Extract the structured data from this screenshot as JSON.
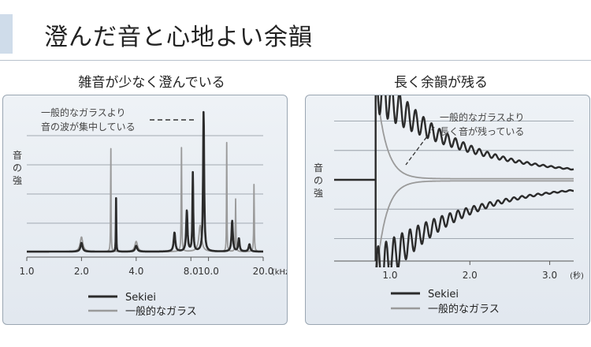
{
  "page": {
    "title": "澄んだ音と心地よい余韻"
  },
  "left_panel": {
    "heading": "雑音が少なく澄んでいる",
    "annotation": [
      "一般的なガラスより",
      "音の波が集中している"
    ]
  },
  "right_panel": {
    "heading": "長く余韻が残る",
    "annotation": [
      "一般的なガラスより",
      "長く音が残っている"
    ]
  },
  "colors": {
    "sekiei": "#2b2b2b",
    "glass": "#9a9a9a",
    "panel_bg": "#e6ebf1",
    "accent": "#cfdcea"
  },
  "chart_data": [
    {
      "type": "line",
      "title": "雑音が少なく澄んでいる",
      "xlabel": "",
      "xunit": "(kHz)",
      "ylabel": "音の強さ",
      "xscale": "log",
      "xticks": [
        "1.0",
        "2.0",
        "4.0",
        "8.0",
        "10.0",
        "20.0"
      ],
      "xtick_values": [
        1.0,
        2.0,
        4.0,
        8.0,
        10.0,
        20.0
      ],
      "xlim": [
        1.0,
        20.0
      ],
      "ylim": [
        0,
        1
      ],
      "grid": true,
      "legend_position": "bottom",
      "series": [
        {
          "name": "Sekiei",
          "color": "#2b2b2b",
          "peaks": [
            {
              "x": 2.0,
              "h": 0.06,
              "w": 0.015
            },
            {
              "x": 3.1,
              "h": 0.37,
              "w": 0.003
            },
            {
              "x": 4.0,
              "h": 0.04,
              "w": 0.015
            },
            {
              "x": 6.5,
              "h": 0.13,
              "w": 0.012
            },
            {
              "x": 7.6,
              "h": 0.28,
              "w": 0.01
            },
            {
              "x": 8.2,
              "h": 0.54,
              "w": 0.006
            },
            {
              "x": 9.4,
              "h": 0.96,
              "w": 0.008
            },
            {
              "x": 13.5,
              "h": 0.21,
              "w": 0.01
            },
            {
              "x": 14.7,
              "h": 0.09,
              "w": 0.01
            },
            {
              "x": 16.8,
              "h": 0.05,
              "w": 0.012
            }
          ],
          "baseline": 0.005
        },
        {
          "name": "一般的なガラス",
          "color": "#9a9a9a",
          "peaks": [
            {
              "x": 2.0,
              "h": 0.1,
              "w": 0.02
            },
            {
              "x": 2.9,
              "h": 0.72,
              "w": 0.003
            },
            {
              "x": 4.0,
              "h": 0.07,
              "w": 0.02
            },
            {
              "x": 7.1,
              "h": 0.72,
              "w": 0.004
            },
            {
              "x": 9.0,
              "h": 0.18,
              "w": 0.02
            },
            {
              "x": 12.6,
              "h": 0.78,
              "w": 0.003
            },
            {
              "x": 14.1,
              "h": 0.36,
              "w": 0.004
            },
            {
              "x": 17.8,
              "h": 0.46,
              "w": 0.004
            }
          ],
          "baseline": 0.005
        }
      ]
    },
    {
      "type": "line",
      "title": "長く余韻が残る",
      "xlabel": "",
      "xunit": "(秒)",
      "ylabel": "音の強さ",
      "xticks": [
        "1.0",
        "2.0",
        "3.0"
      ],
      "xtick_values": [
        1.0,
        2.0,
        3.0
      ],
      "xlim": [
        0.3,
        3.3
      ],
      "ylim": [
        -1,
        1
      ],
      "grid": true,
      "legend_position": "bottom",
      "series": [
        {
          "name": "Sekiei",
          "color": "#2b2b2b",
          "onset": 0.82,
          "amplitude": 1.6,
          "decay": 1.0,
          "floor": 0.05,
          "frequency": 10
        },
        {
          "name": "一般的なガラス",
          "color": "#9a9a9a",
          "onset": 0.82,
          "amplitude": 1.4,
          "decay": 0.12,
          "floor": 0.015,
          "frequency": 0
        }
      ]
    }
  ]
}
